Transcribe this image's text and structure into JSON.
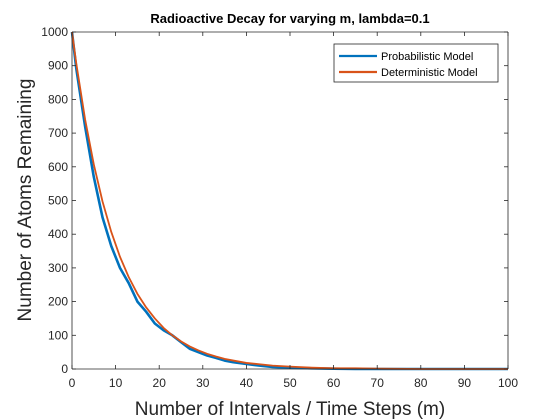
{
  "chart_data": {
    "type": "line",
    "title": "Radioactive Decay for varying m,  lambda=0.1",
    "xlabel": "Number of Intervals / Time Steps (m)",
    "ylabel": "Number of Atoms Remaining",
    "xlim": [
      0,
      100
    ],
    "ylim": [
      0,
      1000
    ],
    "xticks": [
      "0",
      "10",
      "20",
      "30",
      "40",
      "50",
      "60",
      "70",
      "80",
      "90",
      "100"
    ],
    "yticks": [
      "0",
      "100",
      "200",
      "300",
      "400",
      "500",
      "600",
      "700",
      "800",
      "900",
      "1000"
    ],
    "grid": false,
    "legend_position": "top-right",
    "series": [
      {
        "name": "Probabilistic Model",
        "color": "#0072BD",
        "x": [
          0,
          1,
          3,
          5,
          7,
          9,
          11,
          13,
          15,
          17,
          19,
          21,
          23,
          25,
          27,
          29,
          31,
          33,
          35,
          37,
          40,
          43,
          46,
          50,
          55,
          60,
          65,
          70,
          80,
          90,
          100
        ],
        "y": [
          1000,
          890,
          720,
          570,
          450,
          365,
          300,
          255,
          200,
          170,
          135,
          115,
          100,
          80,
          60,
          50,
          40,
          33,
          25,
          20,
          15,
          10,
          6,
          4,
          2,
          1,
          0,
          0,
          0,
          0,
          0
        ]
      },
      {
        "name": "Deterministic Model",
        "color": "#D95319",
        "x": [
          0,
          1,
          3,
          5,
          7,
          9,
          11,
          13,
          15,
          17,
          19,
          21,
          23,
          25,
          27,
          29,
          31,
          33,
          35,
          37,
          40,
          43,
          46,
          50,
          55,
          60,
          65,
          70,
          80,
          90,
          100
        ],
        "y": [
          1000,
          905,
          741,
          607,
          497,
          407,
          333,
          273,
          223,
          183,
          150,
          122,
          100,
          82,
          67,
          55,
          45,
          37,
          30,
          25,
          18,
          14,
          10,
          7,
          4,
          2,
          2,
          1,
          0,
          0,
          0
        ]
      }
    ]
  }
}
